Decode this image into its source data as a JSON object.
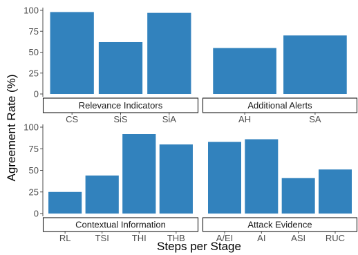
{
  "chart_data": {
    "type": "bar",
    "ylabel": "Agreement Rate (%)",
    "xlabel": "Steps per Stage",
    "ylim": [
      0,
      100
    ],
    "yticks": [
      0,
      25,
      50,
      75,
      100
    ],
    "bar_color": "#3282bd",
    "grid": false,
    "panels": [
      {
        "facet": "Relevance Indicators",
        "categories": [
          "CS",
          "SiS",
          "SiA"
        ],
        "values": [
          98,
          62,
          97
        ]
      },
      {
        "facet": "Additional Alerts",
        "categories": [
          "AH",
          "SA"
        ],
        "values": [
          55,
          70
        ]
      },
      {
        "facet": "Contextual Information",
        "categories": [
          "RL",
          "TSI",
          "THI",
          "THB"
        ],
        "values": [
          25,
          44,
          92,
          80
        ]
      },
      {
        "facet": "Attack Evidence",
        "categories": [
          "A/EI",
          "AI",
          "ASI",
          "RUC"
        ],
        "values": [
          83,
          86,
          41,
          51
        ]
      }
    ]
  }
}
